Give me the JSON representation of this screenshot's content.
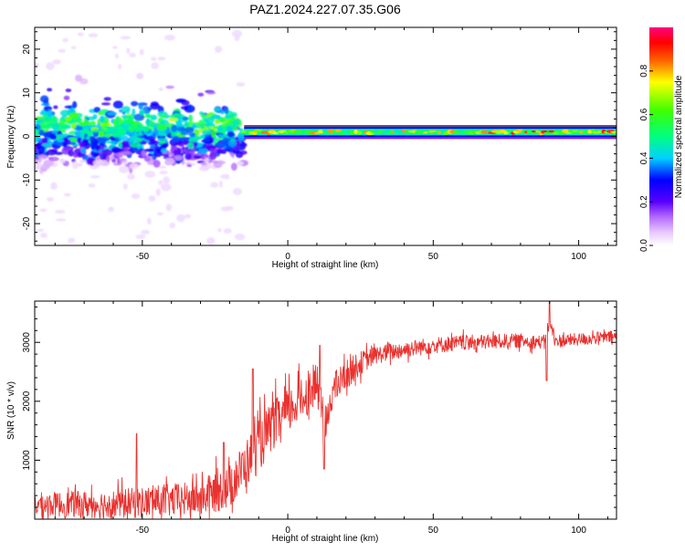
{
  "title": "PAZ1.2024.227.07.35.G06",
  "chart_data": [
    {
      "type": "heatmap",
      "xlabel": "Height of straight line (km)",
      "ylabel": "Frequency (Hz)",
      "xlim": [
        -87,
        113
      ],
      "ylim": [
        -25,
        25
      ],
      "x_ticks": [
        -50,
        0,
        50,
        100
      ],
      "y_ticks": [
        -20,
        -10,
        0,
        10,
        20
      ],
      "x_tick_labels": [
        "-50",
        "0",
        "50",
        "100"
      ],
      "y_tick_labels": [
        "-20",
        "-10",
        "0",
        "10",
        "20"
      ],
      "colorbar": {
        "label": "Normalized spectral amplitude",
        "range": [
          0,
          1
        ],
        "ticks": [
          0.0,
          0.2,
          0.4,
          0.6,
          0.8
        ],
        "tick_labels": [
          "0.0",
          "0.2",
          "0.4",
          "0.6",
          "0.8"
        ],
        "colormap": "rainbow (white-lilac → violet → blue → cyan → green → yellow → red → magenta)"
      },
      "features": {
        "diffuse_spread_height_range": [
          -87,
          -15
        ],
        "diffuse_frequency_range_hz": [
          -24,
          24
        ],
        "narrow_line_start_km": -15,
        "narrow_line_center_hz": 1,
        "narrow_line_halfwidth_hz": 1,
        "narrow_line_peak_amplitude": 0.9
      }
    },
    {
      "type": "line",
      "xlabel": "Height of straight line (km)",
      "ylabel": "SNR (10 * v/v)",
      "xlim": [
        -87,
        113
      ],
      "ylim": [
        0,
        3700
      ],
      "x_ticks": [
        -50,
        0,
        50,
        100
      ],
      "y_ticks": [
        1000,
        2000,
        3000
      ],
      "x_tick_labels": [
        "-50",
        "0",
        "50",
        "100"
      ],
      "y_tick_labels": [
        "1000",
        "2000",
        "3000"
      ],
      "series_color": "#e8322f",
      "trend_knots": {
        "x": [
          -87,
          -60,
          -30,
          -20,
          -12,
          -5,
          5,
          10,
          13,
          15,
          20,
          25,
          30,
          40,
          50,
          60,
          70,
          80,
          88,
          90,
          92,
          100,
          113
        ],
        "y": [
          250,
          250,
          350,
          550,
          1100,
          1600,
          2050,
          2300,
          1500,
          2150,
          2450,
          2650,
          2780,
          2880,
          2950,
          2990,
          3010,
          3030,
          3000,
          3350,
          3020,
          3050,
          3100
        ]
      },
      "noise_amplitude": {
        "x": [
          -87,
          -30,
          -10,
          15,
          30,
          113
        ],
        "y": [
          200,
          300,
          450,
          300,
          150,
          100
        ]
      },
      "spikes": [
        {
          "x": -52,
          "y": 1450
        },
        {
          "x": -22,
          "y": 1300
        },
        {
          "x": -12,
          "y": 2550
        },
        {
          "x": 11,
          "y": 2950
        },
        {
          "x": 12.5,
          "y": 850
        },
        {
          "x": 90,
          "y": 3720
        },
        {
          "x": 89,
          "y": 2350
        }
      ]
    }
  ]
}
